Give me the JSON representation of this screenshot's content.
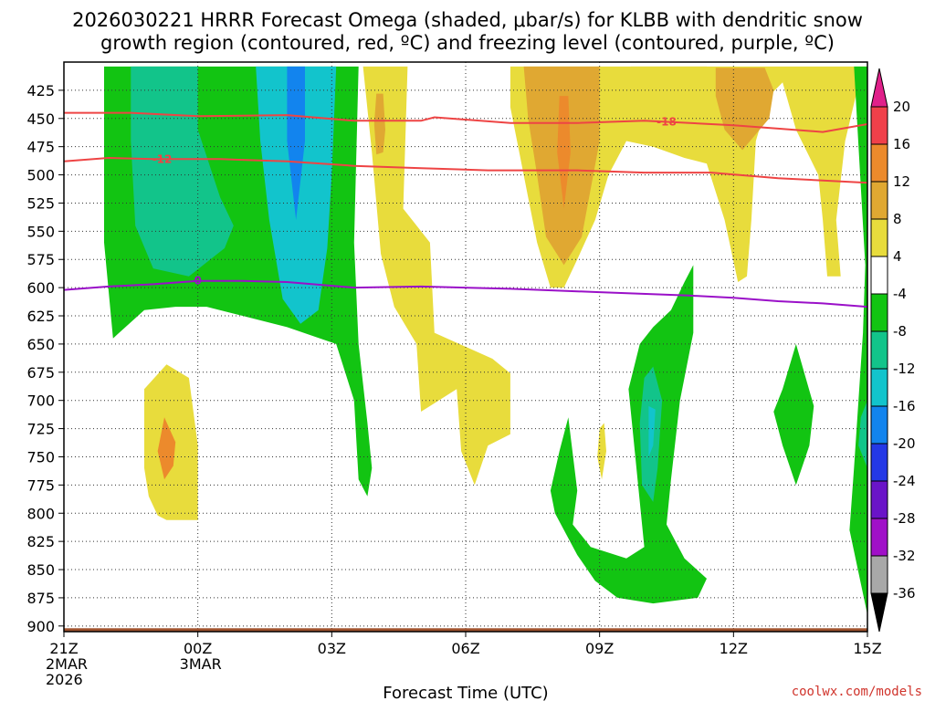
{
  "chart_data": {
    "type": "time-height contour",
    "title_line1": "2026030221 HRRR Forecast Omega (shaded, μbar/s) for KLBB with dendritic snow",
    "title_line2": "growth region (contoured, red, ºC) and freezing level (contoured, purple, ºC)",
    "xlabel": "Forecast Time (UTC)",
    "credit": "coolwx.com/models",
    "x_range_hours": [
      0,
      18
    ],
    "y_range_mb": [
      400,
      905
    ],
    "pressure_ticks": [
      425,
      450,
      475,
      500,
      525,
      550,
      575,
      600,
      625,
      650,
      675,
      700,
      725,
      750,
      775,
      800,
      825,
      850,
      875,
      900
    ],
    "time_ticks": [
      {
        "hour": 0,
        "label": "21Z",
        "sub1": "2MAR",
        "sub2": "2026"
      },
      {
        "hour": 3,
        "label": "00Z",
        "sub1": "3MAR",
        "sub2": ""
      },
      {
        "hour": 6,
        "label": "03Z",
        "sub1": "",
        "sub2": ""
      },
      {
        "hour": 9,
        "label": "06Z",
        "sub1": "",
        "sub2": ""
      },
      {
        "hour": 12,
        "label": "09Z",
        "sub1": "",
        "sub2": ""
      },
      {
        "hour": 15,
        "label": "12Z",
        "sub1": "",
        "sub2": ""
      },
      {
        "hour": 18,
        "label": "15Z",
        "sub1": "",
        "sub2": ""
      }
    ],
    "colorbar": {
      "levels": [
        20,
        16,
        12,
        8,
        4,
        -4,
        -8,
        -12,
        -16,
        -20,
        -24,
        -28,
        -32,
        -36
      ],
      "bins": [
        {
          "name": "16 to 20",
          "color": "#f0404a"
        },
        {
          "name": "12 to 16",
          "color": "#ec8a2c"
        },
        {
          "name": "8 to 12",
          "color": "#e0a832"
        },
        {
          "name": "4 to 8",
          "color": "#e8dc3c"
        },
        {
          "name": "-4 to 4",
          "color": "#ffffff"
        },
        {
          "name": "-8 to -4",
          "color": "#12c412"
        },
        {
          "name": "-12 to -8",
          "color": "#12c48a"
        },
        {
          "name": "-16 to -12",
          "color": "#12c4cc"
        },
        {
          "name": "-20 to -16",
          "color": "#1284ee"
        },
        {
          "name": "-24 to -20",
          "color": "#2438e6"
        },
        {
          "name": "-28 to -24",
          "color": "#6a14c8"
        },
        {
          "name": "-32 to -28",
          "color": "#a010c8"
        },
        {
          "name": "-36 to -32",
          "color": "#a8a8a8"
        }
      ],
      "top_color": "#e0208a",
      "bottom_color": "#000000"
    },
    "omega_regions": [
      {
        "name": "omega-region",
        "color": "#12c412",
        "pts": [
          [
            0.9,
            404
          ],
          [
            6.6,
            404
          ],
          [
            6.5,
            560
          ],
          [
            6.6,
            650
          ],
          [
            6.8,
            720
          ],
          [
            6.9,
            760
          ],
          [
            6.8,
            785
          ],
          [
            6.6,
            770
          ],
          [
            6.5,
            700
          ],
          [
            6.1,
            650
          ],
          [
            5.0,
            635
          ],
          [
            4.0,
            625
          ],
          [
            3.2,
            617
          ],
          [
            2.5,
            617
          ],
          [
            1.8,
            620
          ],
          [
            1.1,
            645
          ],
          [
            0.9,
            560
          ]
        ]
      },
      {
        "name": "omega-region",
        "color": "#12c48a",
        "pts": [
          [
            1.5,
            404
          ],
          [
            3.0,
            404
          ],
          [
            3.0,
            460
          ],
          [
            3.5,
            520
          ],
          [
            3.8,
            545
          ],
          [
            3.6,
            565
          ],
          [
            2.8,
            590
          ],
          [
            2.0,
            583
          ],
          [
            1.6,
            545
          ],
          [
            1.5,
            470
          ]
        ]
      },
      {
        "name": "omega-region",
        "color": "#12c4cc",
        "pts": [
          [
            4.3,
            404
          ],
          [
            6.1,
            404
          ],
          [
            6.0,
            500
          ],
          [
            5.9,
            565
          ],
          [
            5.7,
            620
          ],
          [
            5.3,
            632
          ],
          [
            4.9,
            610
          ],
          [
            4.6,
            540
          ],
          [
            4.4,
            470
          ]
        ]
      },
      {
        "name": "omega-region",
        "color": "#1284ee",
        "pts": [
          [
            5.0,
            404
          ],
          [
            5.4,
            404
          ],
          [
            5.4,
            470
          ],
          [
            5.2,
            540
          ],
          [
            5.0,
            470
          ]
        ]
      },
      {
        "name": "omega-region",
        "color": "#e8dc3c",
        "pts": [
          [
            6.7,
            404
          ],
          [
            7.7,
            404
          ],
          [
            7.6,
            530
          ],
          [
            8.2,
            560
          ],
          [
            8.3,
            640
          ],
          [
            9.6,
            663
          ],
          [
            10.0,
            676
          ],
          [
            10.0,
            730
          ],
          [
            9.5,
            740
          ],
          [
            9.2,
            775
          ],
          [
            8.9,
            745
          ],
          [
            8.8,
            690
          ],
          [
            8.2,
            705
          ],
          [
            8.0,
            710
          ],
          [
            7.9,
            650
          ],
          [
            7.4,
            617
          ],
          [
            7.1,
            570
          ],
          [
            6.9,
            480
          ]
        ]
      },
      {
        "name": "omega-region",
        "color": "#e8dc3c",
        "pts": [
          [
            10.0,
            404
          ],
          [
            18.0,
            404
          ],
          [
            17.8,
            420
          ],
          [
            17.5,
            470
          ],
          [
            17.3,
            540
          ],
          [
            17.4,
            590
          ],
          [
            17.1,
            590
          ],
          [
            17.0,
            540
          ],
          [
            16.9,
            500
          ],
          [
            16.4,
            460
          ],
          [
            16.1,
            418
          ],
          [
            15.8,
            430
          ],
          [
            15.5,
            470
          ],
          [
            15.4,
            540
          ],
          [
            15.3,
            590
          ],
          [
            15.1,
            595
          ],
          [
            14.8,
            540
          ],
          [
            14.4,
            490
          ],
          [
            13.9,
            485
          ],
          [
            13.2,
            475
          ],
          [
            12.6,
            470
          ],
          [
            12.2,
            500
          ],
          [
            11.9,
            540
          ],
          [
            11.5,
            575
          ],
          [
            11.2,
            600
          ],
          [
            10.9,
            600
          ],
          [
            10.6,
            560
          ],
          [
            10.4,
            520
          ],
          [
            10.2,
            480
          ],
          [
            10.0,
            440
          ]
        ]
      },
      {
        "name": "omega-region",
        "color": "#e8dc3c",
        "pts": [
          [
            12.7,
            404
          ],
          [
            14.4,
            404
          ],
          [
            14.3,
            455
          ],
          [
            13.9,
            475
          ],
          [
            13.2,
            475
          ],
          [
            12.9,
            465
          ],
          [
            12.7,
            440
          ]
        ]
      },
      {
        "name": "omega-region",
        "color": "#e0a832",
        "pts": [
          [
            10.3,
            404
          ],
          [
            12.0,
            404
          ],
          [
            12.0,
            470
          ],
          [
            11.6,
            555
          ],
          [
            11.2,
            580
          ],
          [
            10.8,
            555
          ],
          [
            10.6,
            500
          ],
          [
            10.4,
            450
          ]
        ]
      },
      {
        "name": "omega-region",
        "color": "#e0a832",
        "pts": [
          [
            14.6,
            405
          ],
          [
            15.7,
            405
          ],
          [
            15.9,
            425
          ],
          [
            15.8,
            450
          ],
          [
            15.2,
            478
          ],
          [
            14.8,
            460
          ],
          [
            14.6,
            430
          ]
        ]
      },
      {
        "name": "omega-region",
        "color": "#ec8a2c",
        "pts": [
          [
            11.1,
            430
          ],
          [
            11.3,
            430
          ],
          [
            11.35,
            480
          ],
          [
            11.2,
            530
          ],
          [
            11.05,
            480
          ]
        ]
      },
      {
        "name": "omega-region",
        "color": "#e0a832",
        "pts": [
          [
            7.0,
            428
          ],
          [
            7.15,
            428
          ],
          [
            7.2,
            460
          ],
          [
            7.15,
            480
          ],
          [
            7.0,
            482
          ],
          [
            6.95,
            455
          ]
        ]
      },
      {
        "name": "omega-region",
        "color": "#e8dc3c",
        "pts": [
          [
            1.8,
            690
          ],
          [
            2.3,
            668
          ],
          [
            2.8,
            680
          ],
          [
            3.0,
            740
          ],
          [
            3.0,
            806
          ],
          [
            2.3,
            806
          ],
          [
            2.1,
            802
          ],
          [
            1.9,
            785
          ],
          [
            1.8,
            760
          ]
        ]
      },
      {
        "name": "omega-region",
        "color": "#ec8a2c",
        "pts": [
          [
            2.25,
            715
          ],
          [
            2.5,
            737
          ],
          [
            2.45,
            758
          ],
          [
            2.25,
            770
          ],
          [
            2.1,
            745
          ]
        ]
      },
      {
        "name": "omega-region",
        "color": "#e8dc3c",
        "pts": [
          [
            12.0,
            725
          ],
          [
            12.1,
            720
          ],
          [
            12.15,
            745
          ],
          [
            12.05,
            770
          ],
          [
            11.95,
            750
          ]
        ]
      },
      {
        "name": "omega-region",
        "color": "#12c412",
        "pts": [
          [
            12.65,
            690
          ],
          [
            12.9,
            650
          ],
          [
            13.2,
            635
          ],
          [
            13.6,
            620
          ],
          [
            13.9,
            595
          ],
          [
            14.1,
            580
          ],
          [
            14.1,
            640
          ],
          [
            13.8,
            700
          ],
          [
            13.6,
            770
          ],
          [
            13.5,
            810
          ],
          [
            13.9,
            840
          ],
          [
            14.4,
            858
          ],
          [
            14.2,
            875
          ],
          [
            13.2,
            880
          ],
          [
            12.4,
            875
          ],
          [
            11.9,
            860
          ],
          [
            11.5,
            837
          ],
          [
            11.0,
            800
          ],
          [
            10.9,
            780
          ],
          [
            11.1,
            745
          ],
          [
            11.3,
            715
          ],
          [
            11.5,
            780
          ],
          [
            11.4,
            810
          ],
          [
            11.8,
            830
          ],
          [
            12.6,
            840
          ],
          [
            13.0,
            830
          ],
          [
            12.9,
            790
          ],
          [
            12.8,
            750
          ]
        ]
      },
      {
        "name": "omega-region",
        "color": "#12c48a",
        "pts": [
          [
            13.0,
            680
          ],
          [
            13.2,
            670
          ],
          [
            13.4,
            700
          ],
          [
            13.3,
            760
          ],
          [
            13.2,
            790
          ],
          [
            12.95,
            775
          ],
          [
            12.9,
            720
          ]
        ]
      },
      {
        "name": "omega-region",
        "color": "#12c4cc",
        "pts": [
          [
            13.1,
            705
          ],
          [
            13.25,
            708
          ],
          [
            13.2,
            740
          ],
          [
            13.1,
            750
          ]
        ]
      },
      {
        "name": "omega-region",
        "color": "#12c412",
        "pts": [
          [
            16.1,
            690
          ],
          [
            16.4,
            650
          ],
          [
            16.8,
            705
          ],
          [
            16.7,
            740
          ],
          [
            16.4,
            775
          ],
          [
            16.1,
            740
          ],
          [
            15.9,
            710
          ]
        ]
      },
      {
        "name": "omega-region",
        "color": "#12c412",
        "pts": [
          [
            17.7,
            404
          ],
          [
            18.0,
            404
          ],
          [
            18.0,
            890
          ],
          [
            17.6,
            815
          ],
          [
            17.7,
            760
          ],
          [
            17.8,
            700
          ],
          [
            17.9,
            640
          ],
          [
            17.95,
            580
          ]
        ]
      },
      {
        "name": "omega-region",
        "color": "#12c48a",
        "pts": [
          [
            17.85,
            715
          ],
          [
            18.0,
            700
          ],
          [
            18.0,
            760
          ],
          [
            17.8,
            740
          ]
        ]
      }
    ],
    "contours": [
      {
        "name": "dgz-minus-18-line",
        "temp": -18,
        "color": "#ee4444",
        "label": "-18",
        "label_hour": 13.5,
        "pts": [
          [
            0,
            445
          ],
          [
            1.5,
            445
          ],
          [
            3.0,
            448
          ],
          [
            5.0,
            447
          ],
          [
            6.5,
            452
          ],
          [
            8.0,
            452
          ],
          [
            8.3,
            449
          ],
          [
            10.0,
            454
          ],
          [
            11.5,
            454
          ],
          [
            13.0,
            452
          ],
          [
            15.0,
            456
          ],
          [
            16.0,
            459
          ],
          [
            17.0,
            462
          ],
          [
            18.0,
            455
          ]
        ]
      },
      {
        "name": "dgz-minus-12-line",
        "temp": -12,
        "color": "#ee4444",
        "label": "-12",
        "label_hour": 2.2,
        "pts": [
          [
            0,
            488
          ],
          [
            1.0,
            485
          ],
          [
            2.0,
            486
          ],
          [
            3.5,
            486
          ],
          [
            5.0,
            488
          ],
          [
            6.5,
            492
          ],
          [
            8.0,
            494
          ],
          [
            9.5,
            496
          ],
          [
            11.5,
            496
          ],
          [
            13.0,
            498
          ],
          [
            14.5,
            498
          ],
          [
            16.0,
            503
          ],
          [
            17.0,
            505
          ],
          [
            18.0,
            507
          ]
        ]
      },
      {
        "name": "freezing-level-line",
        "temp": 0,
        "color": "#9a10c8",
        "label": "0",
        "label_hour": 3.0,
        "pts": [
          [
            0,
            602
          ],
          [
            1.0,
            599
          ],
          [
            2.0,
            597
          ],
          [
            3.0,
            594
          ],
          [
            4.0,
            594
          ],
          [
            5.0,
            595
          ],
          [
            6.5,
            600
          ],
          [
            8.0,
            599
          ],
          [
            10.0,
            601
          ],
          [
            12.0,
            604
          ],
          [
            14.0,
            607
          ],
          [
            15.0,
            609
          ],
          [
            16.0,
            612
          ],
          [
            17.0,
            614
          ],
          [
            18.0,
            617
          ]
        ]
      }
    ],
    "terrain_color": "#a0522d"
  }
}
